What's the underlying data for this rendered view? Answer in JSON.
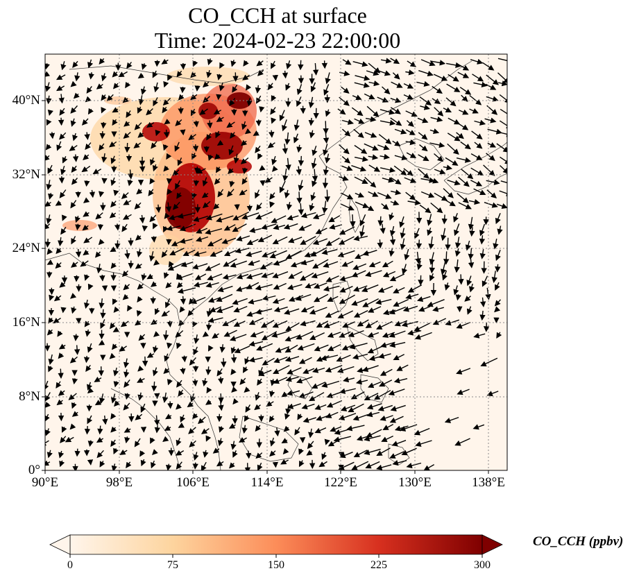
{
  "title": "CO_CCH at surface",
  "subtitle": "Time: 2024-02-23 22:00:00",
  "y_ticks": [
    "0°",
    "8°N",
    "16°N",
    "24°N",
    "32°N",
    "40°N"
  ],
  "x_ticks": [
    "90°E",
    "98°E",
    "106°E",
    "114°E",
    "122°E",
    "130°E",
    "138°E"
  ],
  "colorbar": {
    "label": "CO_CCH (ppbv)",
    "ticks": [
      "0",
      "75",
      "150",
      "225",
      "300"
    ],
    "colors": [
      "#fff5eb",
      "#fdd49e",
      "#fc8d59",
      "#d7301f",
      "#7f0000"
    ]
  },
  "chart_data": {
    "type": "heatmap",
    "title": "CO_CCH at surface",
    "subtitle": "Time: 2024-02-23 22:00:00",
    "variable": "CO_CCH",
    "units": "ppbv",
    "lon_range": [
      90,
      140
    ],
    "lat_range": [
      0,
      45
    ],
    "vmin": 0,
    "vmax": 300,
    "overlay": "wind vectors",
    "gridlines": "dotted",
    "high_concentration_regions": [
      {
        "lon": 108,
        "lat": 29,
        "value": 300
      },
      {
        "lon": 110,
        "lat": 36,
        "value": 290
      },
      {
        "lon": 103,
        "lat": 36,
        "value": 240
      },
      {
        "lon": 111,
        "lat": 39,
        "value": 260
      },
      {
        "lon": 105,
        "lat": 26,
        "value": 220
      },
      {
        "lon": 97,
        "lat": 26,
        "value": 120
      }
    ]
  }
}
